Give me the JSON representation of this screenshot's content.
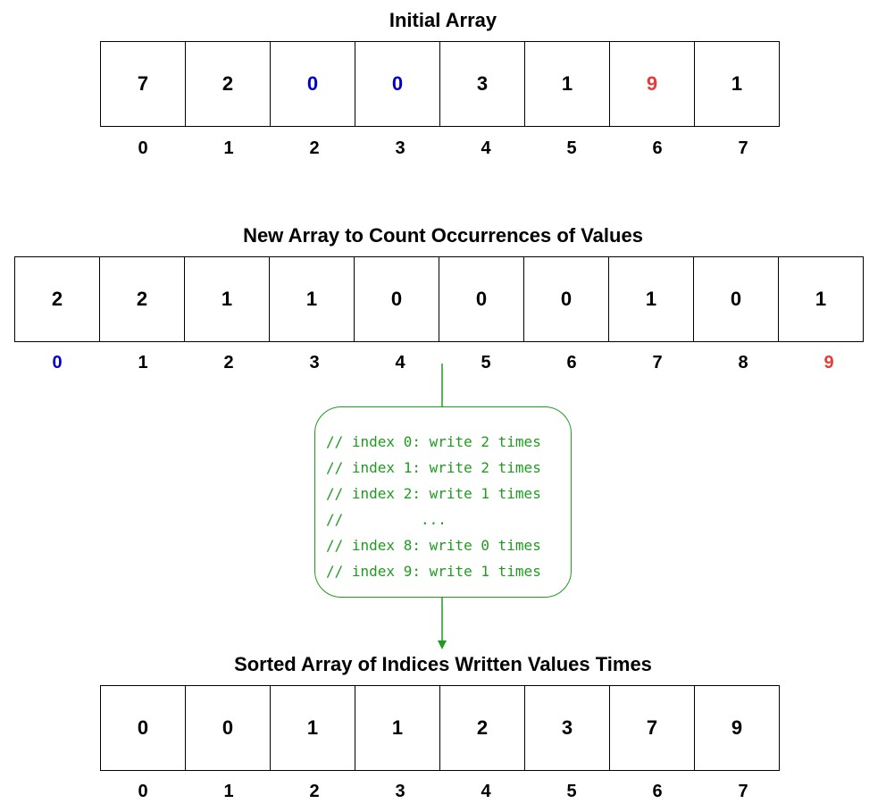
{
  "initial": {
    "title": "Initial Array",
    "cells": [
      "7",
      "2",
      "0",
      "0",
      "3",
      "1",
      "9",
      "1"
    ],
    "indices": [
      "0",
      "1",
      "2",
      "3",
      "4",
      "5",
      "6",
      "7"
    ]
  },
  "count": {
    "title": "New Array to Count Occurrences of Values",
    "cells": [
      "2",
      "2",
      "1",
      "1",
      "0",
      "0",
      "0",
      "1",
      "0",
      "1"
    ],
    "indices": [
      "0",
      "1",
      "2",
      "3",
      "4",
      "5",
      "6",
      "7",
      "8",
      "9"
    ]
  },
  "note": {
    "lines": [
      "// index 0: write 2 times",
      "// index 1: write 2 times",
      "// index 2: write 1 times",
      "//         ...",
      "// index 8: write 0 times",
      "// index 9: write 1 times"
    ]
  },
  "sorted": {
    "title": "Sorted Array of Indices Written Values Times",
    "cells": [
      "0",
      "0",
      "1",
      "1",
      "2",
      "3",
      "7",
      "9"
    ],
    "indices": [
      "0",
      "1",
      "2",
      "3",
      "4",
      "5",
      "6",
      "7"
    ]
  },
  "colors": {
    "min_highlight": "#0000cc",
    "max_highlight": "#e83a3a",
    "note": "#1f9c1f"
  }
}
